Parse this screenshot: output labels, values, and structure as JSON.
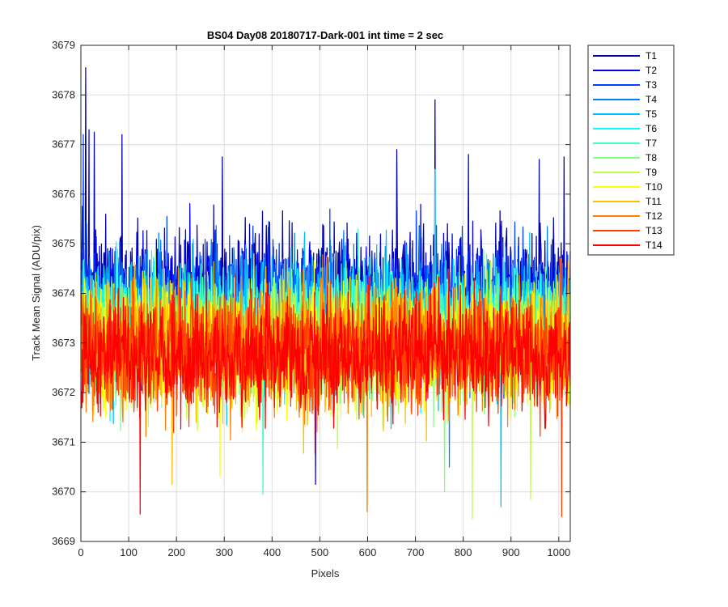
{
  "chart_data": {
    "type": "line",
    "title": "BS04 Day08 20180717-Dark-001 int time = 2 sec",
    "xlabel": "Pixels",
    "ylabel": "Track Mean Signal (ADU/pix)",
    "xlim": [
      0,
      1024
    ],
    "ylim": [
      3669,
      3679
    ],
    "xticks": [
      0,
      100,
      200,
      300,
      400,
      500,
      600,
      700,
      800,
      900,
      1000
    ],
    "yticks": [
      3669,
      3670,
      3671,
      3672,
      3673,
      3674,
      3675,
      3676,
      3677,
      3678,
      3679
    ],
    "grid": true,
    "legend_position": "outside-top-right",
    "n_points": 1024,
    "series": [
      {
        "name": "T1",
        "color": "#0000a8",
        "mean": 3674.0,
        "spread": 1.05,
        "peaks": [
          [
            9,
            3678.55
          ],
          [
            740,
            3677.9
          ],
          [
            27,
            3677.25
          ],
          [
            85,
            3677.2
          ],
          [
            810,
            3676.8
          ],
          [
            295,
            3676.75
          ],
          [
            660,
            3676.9
          ],
          [
            1010,
            3676.75
          ],
          [
            958,
            3676.7
          ]
        ]
      },
      {
        "name": "T2",
        "color": "#0000e6",
        "mean": 3673.85,
        "spread": 1.0,
        "peaks": [
          [
            16,
            3677.3
          ],
          [
            490,
            3670.15
          ]
        ]
      },
      {
        "name": "T3",
        "color": "#0040ff",
        "mean": 3673.7,
        "spread": 1.0,
        "peaks": [
          [
            4,
            3677.2
          ]
        ]
      },
      {
        "name": "T4",
        "color": "#0080ff",
        "mean": 3673.55,
        "spread": 1.0,
        "peaks": [
          [
            770,
            3670.5
          ]
        ]
      },
      {
        "name": "T5",
        "color": "#00bfff",
        "mean": 3673.45,
        "spread": 1.0,
        "peaks": [
          [
            878,
            3669.7
          ]
        ]
      },
      {
        "name": "T6",
        "color": "#00ffff",
        "mean": 3673.35,
        "spread": 0.95,
        "peaks": [
          [
            740,
            3676.5
          ]
        ]
      },
      {
        "name": "T7",
        "color": "#40ffbf",
        "mean": 3673.25,
        "spread": 0.95,
        "peaks": [
          [
            380,
            3669.95
          ]
        ]
      },
      {
        "name": "T8",
        "color": "#80ff80",
        "mean": 3673.15,
        "spread": 0.95,
        "peaks": [
          [
            760,
            3670.0
          ]
        ]
      },
      {
        "name": "T9",
        "color": "#bfff40",
        "mean": 3673.05,
        "spread": 0.95,
        "peaks": [
          [
            818,
            3669.45
          ],
          [
            940,
            3669.85
          ]
        ]
      },
      {
        "name": "T10",
        "color": "#ffff00",
        "mean": 3672.95,
        "spread": 0.95,
        "peaks": [
          [
            290,
            3670.3
          ]
        ]
      },
      {
        "name": "T11",
        "color": "#ffbf00",
        "mean": 3672.9,
        "spread": 0.95,
        "peaks": [
          [
            190,
            3670.15
          ]
        ]
      },
      {
        "name": "T12",
        "color": "#ff8000",
        "mean": 3672.85,
        "spread": 0.95,
        "peaks": [
          [
            598,
            3669.6
          ]
        ]
      },
      {
        "name": "T13",
        "color": "#ff4000",
        "mean": 3672.8,
        "spread": 0.95,
        "peaks": [
          [
            1005,
            3669.5
          ]
        ]
      },
      {
        "name": "T14",
        "color": "#ff0000",
        "mean": 3672.75,
        "spread": 0.9,
        "peaks": [
          [
            123,
            3669.55
          ]
        ]
      }
    ]
  }
}
